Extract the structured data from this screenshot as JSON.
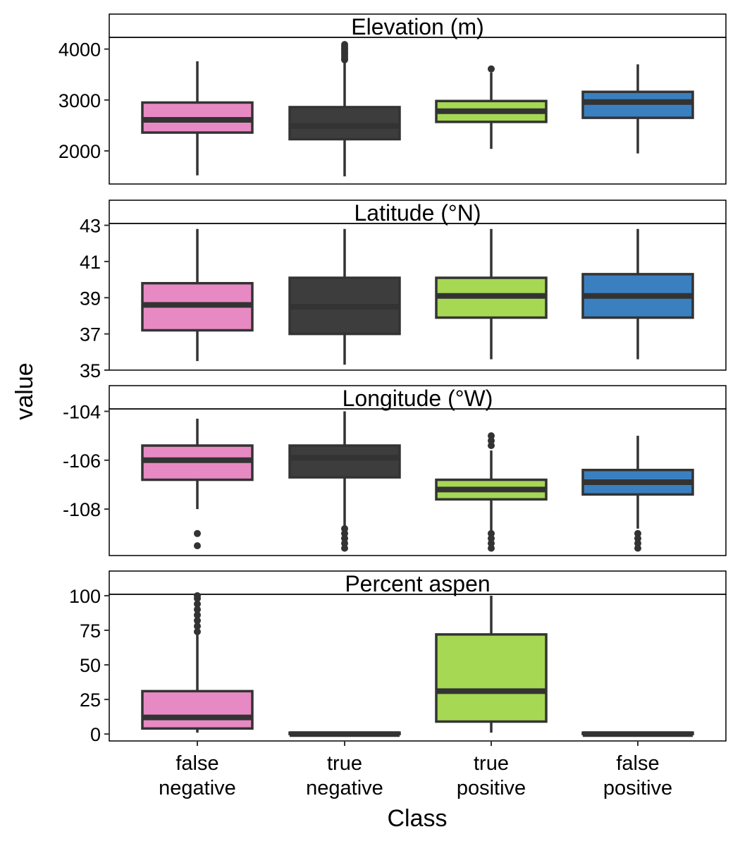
{
  "chart_data": {
    "type": "boxplot",
    "xlabel": "Class",
    "ylabel": "value",
    "categories": [
      "false\nnegative",
      "true\nnegative",
      "true\npositive",
      "false\npositive"
    ],
    "colors": [
      "#e78ac3",
      "#3d3d3d",
      "#a6d854",
      "#3a80c0"
    ],
    "outline_color": "#333333",
    "facets": [
      {
        "title": "Elevation (m)",
        "ylim": [
          1350,
          4230
        ],
        "yticks": [
          2000,
          3000,
          4000
        ],
        "ytick_labels": [
          "2000",
          "3000",
          "4000"
        ],
        "boxes": [
          {
            "whislo": 1520,
            "q1": 2360,
            "med": 2610,
            "q3": 2950,
            "whishi": 3760,
            "fliers": []
          },
          {
            "whislo": 1500,
            "q1": 2230,
            "med": 2490,
            "q3": 2860,
            "whishi": 3760,
            "fliers": [
              3790,
              3820,
              3860,
              3900,
              3940,
              3980,
              4010,
              4050,
              4090
            ]
          },
          {
            "whislo": 2040,
            "q1": 2570,
            "med": 2780,
            "q3": 2980,
            "whishi": 3540,
            "fliers": [
              3610
            ]
          },
          {
            "whislo": 1950,
            "q1": 2650,
            "med": 2960,
            "q3": 3160,
            "whishi": 3700,
            "fliers": []
          }
        ]
      },
      {
        "title": "Latitude (°N)",
        "ylim": [
          35,
          43.1
        ],
        "yticks": [
          35,
          37,
          39,
          41,
          43
        ],
        "ytick_labels": [
          "35",
          "37",
          "39",
          "41",
          "43"
        ],
        "boxes": [
          {
            "whislo": 35.5,
            "q1": 37.2,
            "med": 38.6,
            "q3": 39.8,
            "whishi": 42.8,
            "fliers": []
          },
          {
            "whislo": 35.3,
            "q1": 37.0,
            "med": 38.5,
            "q3": 40.1,
            "whishi": 42.8,
            "fliers": []
          },
          {
            "whislo": 35.6,
            "q1": 37.9,
            "med": 39.1,
            "q3": 40.1,
            "whishi": 42.8,
            "fliers": []
          },
          {
            "whislo": 35.6,
            "q1": 37.9,
            "med": 39.1,
            "q3": 40.3,
            "whishi": 42.8,
            "fliers": []
          }
        ]
      },
      {
        "title": "Longitude (°W)",
        "ylim": [
          -109.9,
          -103.9
        ],
        "yticks": [
          -104,
          -106,
          -108
        ],
        "ytick_labels": [
          "-104",
          "-106",
          "-108"
        ],
        "boxes": [
          {
            "whislo": -108.0,
            "q1": -106.8,
            "med": -106.0,
            "q3": -105.4,
            "whishi": -104.3,
            "fliers": [
              -109.0,
              -109.5
            ]
          },
          {
            "whislo": -108.7,
            "q1": -106.7,
            "med": -105.9,
            "q3": -105.4,
            "whishi": -104.0,
            "fliers": [
              -108.8,
              -109.0,
              -109.2,
              -109.4,
              -109.6
            ]
          },
          {
            "whislo": -108.9,
            "q1": -107.6,
            "med": -107.2,
            "q3": -106.8,
            "whishi": -105.6,
            "fliers": [
              -105.0,
              -105.2,
              -105.4,
              -109.0,
              -109.2,
              -109.4,
              -109.6
            ]
          },
          {
            "whislo": -108.8,
            "q1": -107.4,
            "med": -106.9,
            "q3": -106.4,
            "whishi": -105.0,
            "fliers": [
              -109.0,
              -109.2,
              -109.4,
              -109.6
            ]
          }
        ]
      },
      {
        "title": "Percent aspen",
        "ylim": [
          -5,
          101
        ],
        "yticks": [
          0,
          25,
          50,
          75,
          100
        ],
        "ytick_labels": [
          "0",
          "25",
          "50",
          "75",
          "100"
        ],
        "boxes": [
          {
            "whislo": 1,
            "q1": 4,
            "med": 12,
            "q3": 31,
            "whishi": 72,
            "fliers": [
              74,
              78,
              82,
              86,
              90,
              94,
              98,
              100
            ]
          },
          {
            "whislo": 0,
            "q1": 0,
            "med": 0,
            "q3": 1,
            "whishi": 1,
            "fliers": []
          },
          {
            "whislo": 1,
            "q1": 9,
            "med": 31,
            "q3": 72,
            "whishi": 100,
            "fliers": []
          },
          {
            "whislo": 0,
            "q1": 0,
            "med": 0,
            "q3": 1,
            "whishi": 1,
            "fliers": []
          }
        ]
      }
    ]
  }
}
